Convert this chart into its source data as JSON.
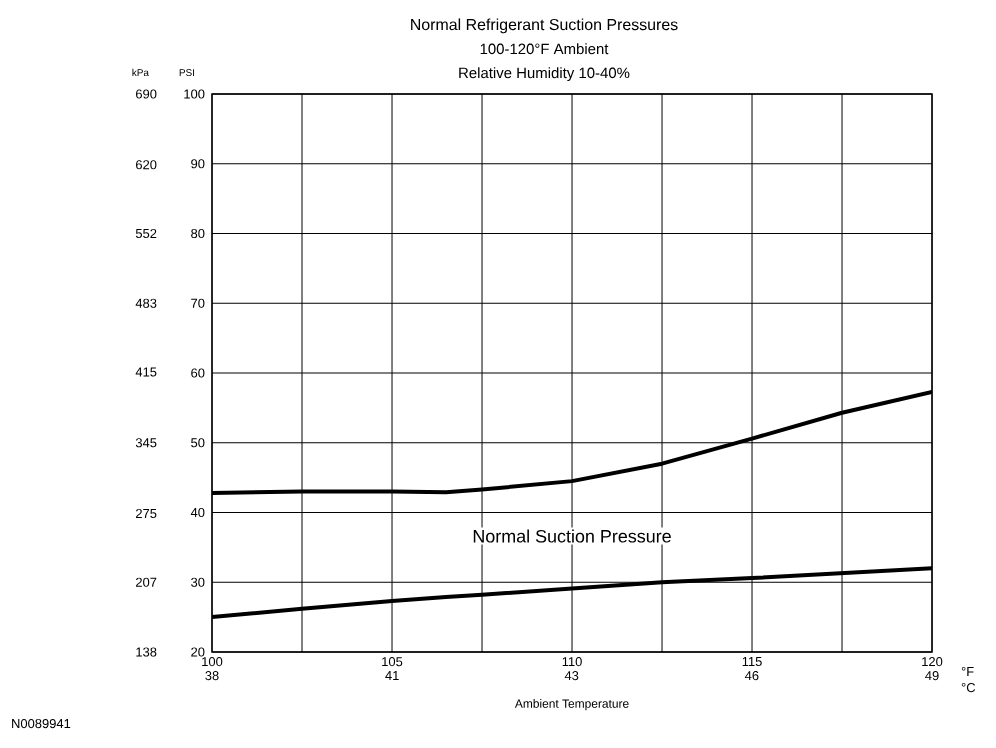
{
  "chart_data": {
    "type": "line",
    "title": "Normal Refrigerant Suction Pressures",
    "subtitle": "100-120°F Ambient",
    "xlabel": "Ambient Temperature",
    "ylabel": "PSI",
    "y2label": "kPa",
    "x": [
      100,
      102.5,
      105,
      106.5,
      107.5,
      110,
      112.5,
      115,
      117.5,
      120
    ],
    "series": [
      {
        "color": "#000000",
        "values": [
          42.8,
          43,
          43,
          42.9,
          43.3,
          44.5,
          47,
          50.6,
          54.3,
          57.3
        ]
      },
      {
        "color": "#000000",
        "values": [
          25,
          26.2,
          27.3,
          27.9,
          28.2,
          29.1,
          30,
          30.6,
          31.3,
          32
        ]
      }
    ],
    "xlim": [
      100,
      120
    ],
    "xticks": [
      100,
      {
        "value": 102.5,
        "label": null
      },
      105,
      {
        "value": 107.5,
        "label": null
      },
      110,
      {
        "value": 112.5,
        "label": null
      },
      115,
      {
        "value": 117.5,
        "label": null
      },
      120
    ],
    "x2lim": [
      37.78,
      48.89
    ],
    "x2ticks": [
      {
        "value": 37.78,
        "label": "38"
      },
      {
        "value": 40.56,
        "label": "41"
      },
      {
        "value": 43.33,
        "label": "43"
      },
      {
        "value": 46.11,
        "label": "46"
      },
      {
        "value": 48.89,
        "label": "49"
      }
    ],
    "ylim": [
      20,
      100
    ],
    "yticks": [
      20,
      30,
      40,
      50,
      60,
      70,
      80,
      90,
      100
    ],
    "y2lim": [
      138,
      690
    ],
    "y2ticks": [
      138,
      207,
      275,
      345,
      415,
      483,
      552,
      620,
      690
    ],
    "grid": true,
    "line_style": "solid",
    "annotations": [
      "Normal Suction Pressure",
      "Relative Humidity 10-40%",
      "°F",
      "°C",
      "N0089941"
    ]
  }
}
